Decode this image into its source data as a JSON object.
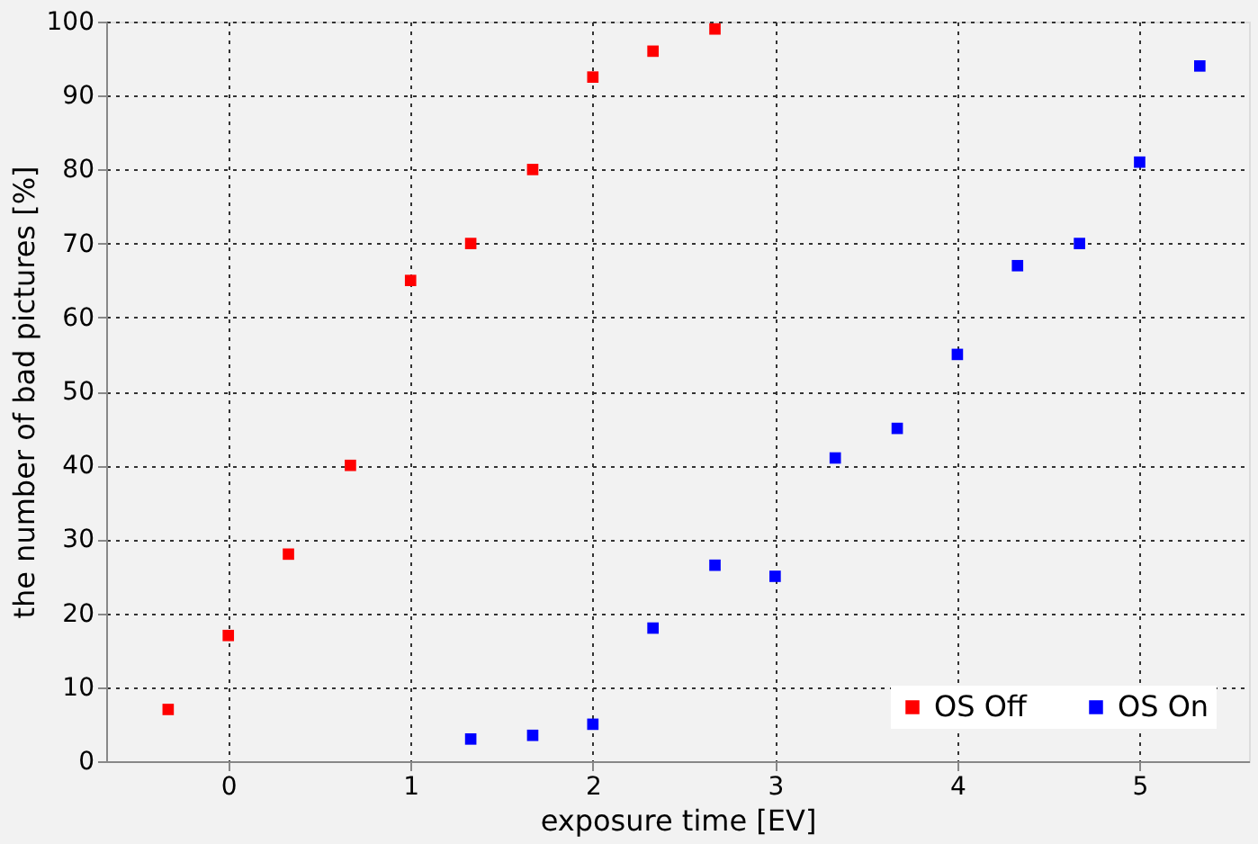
{
  "chart_data": {
    "type": "scatter",
    "xlabel": "exposure time [EV]",
    "ylabel": "the number of bad pictures [%]",
    "xlim": [
      -0.67,
      5.6
    ],
    "xticks": [
      0,
      1,
      2,
      3,
      4,
      5
    ],
    "ylim": [
      0,
      100
    ],
    "yticks": [
      0,
      10,
      20,
      30,
      40,
      50,
      60,
      70,
      80,
      90,
      100
    ],
    "grid": true,
    "legend": "bottom right",
    "marker": "square",
    "series": [
      {
        "name": "OS Off",
        "color": "#ff0000",
        "x": [
          -0.33,
          0,
          0.33,
          0.67,
          1,
          1.33,
          1.67,
          2,
          2.33,
          2.67
        ],
        "values": [
          7,
          17,
          28,
          40,
          65,
          70,
          80,
          92.5,
          96,
          99
        ]
      },
      {
        "name": "OS On",
        "color": "#0000ff",
        "x": [
          1.33,
          1.67,
          2,
          2.33,
          2.67,
          3,
          3.33,
          3.67,
          4,
          4.33,
          4.67,
          5,
          5.33
        ],
        "values": [
          3,
          3.5,
          5,
          18,
          26.5,
          25,
          41,
          45,
          55,
          67,
          70,
          81,
          94
        ]
      }
    ]
  }
}
